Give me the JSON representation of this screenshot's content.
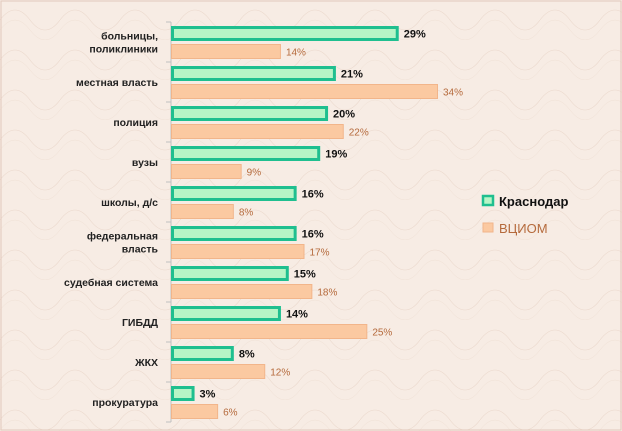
{
  "chart_data": {
    "type": "bar",
    "orientation": "horizontal",
    "categories": [
      [
        "больницы,",
        "поликлиники"
      ],
      [
        "местная власть"
      ],
      [
        "полиция"
      ],
      [
        "вузы"
      ],
      [
        "школы, д/с"
      ],
      [
        "федеральная",
        "власть"
      ],
      [
        "судебная система"
      ],
      [
        "ГИБДД"
      ],
      [
        "ЖКХ"
      ],
      [
        "прокуратура"
      ]
    ],
    "series": [
      {
        "name": "Краснодар",
        "values": [
          29,
          21,
          20,
          19,
          16,
          16,
          15,
          14,
          8,
          3
        ],
        "labels": [
          "29%",
          "21%",
          "20%",
          "19%",
          "16%",
          "16%",
          "15%",
          "14%",
          "8%",
          "3%"
        ],
        "fill": "#b7f5c6",
        "stroke": "#1fbf8f",
        "label_color": "#111111"
      },
      {
        "name": "ВЦИОМ",
        "values": [
          14,
          34,
          22,
          9,
          8,
          17,
          18,
          25,
          12,
          6
        ],
        "labels": [
          "14%",
          "34%",
          "22%",
          "9%",
          "8%",
          "17%",
          "18%",
          "25%",
          "12%",
          "6%"
        ],
        "fill": "#fbc9a1",
        "stroke": "#f2b58a",
        "label_color": "#b56a3c"
      }
    ],
    "xlim": [
      0,
      34
    ],
    "grid": false,
    "legend_position": "right"
  }
}
